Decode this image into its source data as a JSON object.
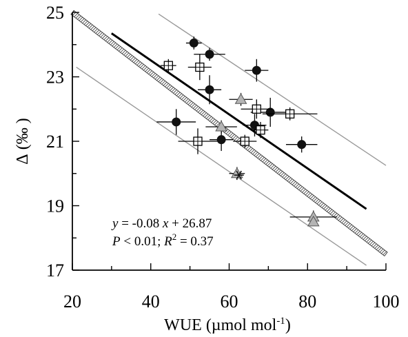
{
  "chart_data": {
    "type": "scatter",
    "xlabel": "WUE (µmol mol",
    "xlabel_sup": "-1",
    "xlabel_close": ")",
    "ylabel_symbol": "Δ",
    "ylabel_unit": "(‰ )",
    "xlim": [
      20,
      100
    ],
    "ylim": [
      17,
      25
    ],
    "xticks": [
      20,
      40,
      60,
      80,
      100
    ],
    "yticks": [
      17,
      19,
      21,
      23,
      25
    ],
    "xtick_labels": [
      "20",
      "40",
      "60",
      "80",
      "100"
    ],
    "ytick_labels": [
      "17",
      "19",
      "21",
      "23",
      "25"
    ],
    "grid": false,
    "annotation": {
      "eq_y": "y",
      "eq_body": " = -0.08 ",
      "eq_x": "x",
      "eq_tail": " + 26.87",
      "p_label": "P",
      "p_value": " < 0.01;  ",
      "r2_label": "R",
      "r2_sup": "2",
      "r2_value": " = 0.37"
    },
    "series": [
      {
        "marker": "circle",
        "color": "#111111",
        "points": [
          {
            "x": 51,
            "y": 24.05,
            "xerr": 2,
            "yerr": 0.2
          },
          {
            "x": 55,
            "y": 23.7,
            "xerr": 4,
            "yerr": 0.2
          },
          {
            "x": 67,
            "y": 23.2,
            "xerr": 3,
            "yerr": 0.35
          },
          {
            "x": 55,
            "y": 22.6,
            "xerr": 3,
            "yerr": 0.45
          },
          {
            "x": 70.5,
            "y": 21.9,
            "xerr": 5,
            "yerr": 0.45
          },
          {
            "x": 66.5,
            "y": 21.5,
            "xerr": 3,
            "yerr": 0.35
          },
          {
            "x": 46.5,
            "y": 21.6,
            "xerr": 5,
            "yerr": 0.4
          },
          {
            "x": 58,
            "y": 21.05,
            "xerr": 3,
            "yerr": 0.35
          },
          {
            "x": 78.5,
            "y": 20.9,
            "xerr": 4,
            "yerr": 0.25
          }
        ]
      },
      {
        "marker": "square-cross",
        "color": "#ffffff",
        "points": [
          {
            "x": 44.5,
            "y": 23.35,
            "xerr": 2,
            "yerr": 0.2
          },
          {
            "x": 52.5,
            "y": 23.3,
            "xerr": 3,
            "yerr": 0.4
          },
          {
            "x": 67,
            "y": 22.0,
            "xerr": 4,
            "yerr": 0.3
          },
          {
            "x": 75.5,
            "y": 21.85,
            "xerr": 7,
            "yerr": 0.2
          },
          {
            "x": 68,
            "y": 21.35,
            "xerr": 2,
            "yerr": 0.25
          },
          {
            "x": 64,
            "y": 21.0,
            "xerr": 3,
            "yerr": 0.2
          },
          {
            "x": 52,
            "y": 21.0,
            "xerr": 5,
            "yerr": 0.4
          }
        ]
      },
      {
        "marker": "triangle",
        "color": "#b4b4b4",
        "points": [
          {
            "x": 63,
            "y": 22.3,
            "xerr": 3,
            "yerr": 0.2
          },
          {
            "x": 58,
            "y": 21.45,
            "xerr": 4,
            "yerr": 0.2
          },
          {
            "x": 62,
            "y": 20.0,
            "xerr": 2,
            "yerr": 0.2
          },
          {
            "x": 81.5,
            "y": 18.65,
            "xerr": 6,
            "yerr": 0.2
          },
          {
            "x": 81.5,
            "y": 18.5,
            "xerr": 0,
            "yerr": 0
          }
        ]
      },
      {
        "marker": "asterisk",
        "color": "#111111",
        "points": [
          {
            "x": 62.5,
            "y": 19.95,
            "xerr": 0,
            "yerr": 0
          }
        ]
      }
    ],
    "lines": [
      {
        "role": "regression",
        "style": "solid-thick",
        "color": "#000000",
        "x": [
          30,
          95
        ],
        "y": [
          24.35,
          18.9
        ]
      },
      {
        "role": "envelope",
        "style": "hatched-wide",
        "color": "#555555",
        "x": [
          20,
          100
        ],
        "y": [
          25.0,
          17.5
        ]
      },
      {
        "role": "bound-upper",
        "style": "solid-thin",
        "color": "#999999",
        "x": [
          42,
          100
        ],
        "y": [
          24.95,
          20.25
        ]
      },
      {
        "role": "bound-lower",
        "style": "solid-thin",
        "color": "#999999",
        "x": [
          21,
          95
        ],
        "y": [
          23.3,
          17.15
        ]
      }
    ]
  }
}
